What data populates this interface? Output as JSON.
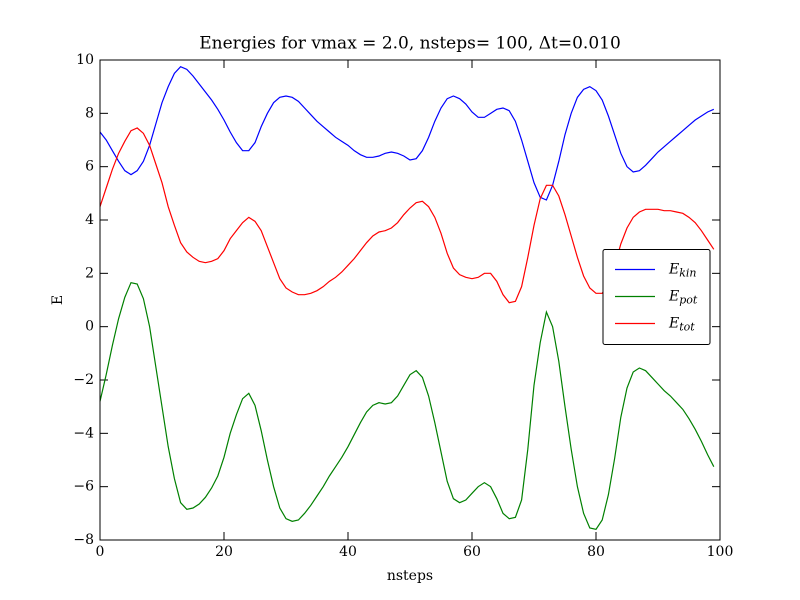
{
  "chart_data": {
    "type": "line",
    "title": "Energies for vmax = 2.0, nsteps= 100, Δt=0.010",
    "x_label": "nsteps",
    "y_label": "E",
    "x": [
      0,
      1,
      2,
      3,
      4,
      5,
      6,
      7,
      8,
      9,
      10,
      11,
      12,
      13,
      14,
      15,
      16,
      17,
      18,
      19,
      20,
      21,
      22,
      23,
      24,
      25,
      26,
      27,
      28,
      29,
      30,
      31,
      32,
      33,
      34,
      35,
      36,
      37,
      38,
      39,
      40,
      41,
      42,
      43,
      44,
      45,
      46,
      47,
      48,
      49,
      50,
      51,
      52,
      53,
      54,
      55,
      56,
      57,
      58,
      59,
      60,
      61,
      62,
      63,
      64,
      65,
      66,
      67,
      68,
      69,
      70,
      71,
      72,
      73,
      74,
      75,
      76,
      77,
      78,
      79,
      80,
      81,
      82,
      83,
      84,
      85,
      86,
      87,
      88,
      89,
      90,
      91,
      92,
      93,
      94,
      95,
      96,
      97,
      98,
      99
    ],
    "series": [
      {
        "name": "Ekin",
        "color": "#0000ff",
        "values": [
          7.3,
          7.0,
          6.6,
          6.2,
          5.85,
          5.7,
          5.85,
          6.2,
          6.8,
          7.6,
          8.4,
          9.0,
          9.5,
          9.75,
          9.65,
          9.4,
          9.1,
          8.8,
          8.5,
          8.15,
          7.75,
          7.3,
          6.9,
          6.6,
          6.6,
          6.9,
          7.5,
          8.0,
          8.4,
          8.6,
          8.65,
          8.6,
          8.45,
          8.2,
          7.95,
          7.7,
          7.5,
          7.3,
          7.1,
          6.95,
          6.8,
          6.6,
          6.45,
          6.35,
          6.35,
          6.4,
          6.5,
          6.55,
          6.5,
          6.4,
          6.25,
          6.3,
          6.6,
          7.1,
          7.7,
          8.2,
          8.55,
          8.65,
          8.55,
          8.35,
          8.05,
          7.85,
          7.85,
          8.0,
          8.15,
          8.2,
          8.1,
          7.7,
          7.0,
          6.2,
          5.4,
          4.85,
          4.75,
          5.3,
          6.2,
          7.2,
          8.0,
          8.6,
          8.9,
          9.0,
          8.85,
          8.5,
          7.9,
          7.2,
          6.5,
          6.0,
          5.8,
          5.85,
          6.05,
          6.3,
          6.55,
          6.75,
          6.95,
          7.15,
          7.35,
          7.55,
          7.75,
          7.9,
          8.05,
          8.15
        ]
      },
      {
        "name": "Epot",
        "color": "#008000",
        "values": [
          -2.8,
          -1.8,
          -0.7,
          0.3,
          1.1,
          1.65,
          1.6,
          1.05,
          0.0,
          -1.5,
          -3.0,
          -4.5,
          -5.7,
          -6.6,
          -6.85,
          -6.8,
          -6.65,
          -6.4,
          -6.05,
          -5.6,
          -4.9,
          -4.0,
          -3.3,
          -2.7,
          -2.5,
          -2.95,
          -3.9,
          -5.0,
          -6.0,
          -6.8,
          -7.2,
          -7.3,
          -7.25,
          -7.0,
          -6.7,
          -6.35,
          -6.0,
          -5.6,
          -5.25,
          -4.9,
          -4.5,
          -4.05,
          -3.6,
          -3.2,
          -2.95,
          -2.85,
          -2.9,
          -2.85,
          -2.6,
          -2.2,
          -1.8,
          -1.65,
          -1.9,
          -2.6,
          -3.6,
          -4.7,
          -5.8,
          -6.45,
          -6.6,
          -6.5,
          -6.25,
          -6.0,
          -5.85,
          -6.0,
          -6.45,
          -7.0,
          -7.2,
          -7.15,
          -6.5,
          -4.6,
          -2.2,
          -0.6,
          0.55,
          0.0,
          -1.3,
          -3.0,
          -4.6,
          -6.0,
          -7.0,
          -7.55,
          -7.6,
          -7.25,
          -6.3,
          -4.95,
          -3.4,
          -2.3,
          -1.7,
          -1.55,
          -1.65,
          -1.9,
          -2.15,
          -2.4,
          -2.6,
          -2.85,
          -3.1,
          -3.45,
          -3.85,
          -4.3,
          -4.8,
          -5.25
        ]
      },
      {
        "name": "Etot",
        "color": "#ff0000",
        "values": [
          4.5,
          5.2,
          5.9,
          6.5,
          6.95,
          7.35,
          7.45,
          7.25,
          6.8,
          6.1,
          5.4,
          4.5,
          3.8,
          3.15,
          2.8,
          2.6,
          2.45,
          2.4,
          2.45,
          2.55,
          2.85,
          3.3,
          3.6,
          3.9,
          4.1,
          3.95,
          3.6,
          3.0,
          2.4,
          1.8,
          1.45,
          1.3,
          1.2,
          1.2,
          1.25,
          1.35,
          1.5,
          1.7,
          1.85,
          2.05,
          2.3,
          2.55,
          2.85,
          3.15,
          3.4,
          3.55,
          3.6,
          3.7,
          3.9,
          4.2,
          4.45,
          4.65,
          4.7,
          4.5,
          4.1,
          3.5,
          2.75,
          2.2,
          1.95,
          1.85,
          1.8,
          1.85,
          2.0,
          2.0,
          1.7,
          1.2,
          0.9,
          0.95,
          1.5,
          2.6,
          3.8,
          4.8,
          5.3,
          5.3,
          4.9,
          4.2,
          3.4,
          2.6,
          1.9,
          1.45,
          1.25,
          1.25,
          1.6,
          2.25,
          3.1,
          3.7,
          4.1,
          4.3,
          4.4,
          4.4,
          4.4,
          4.35,
          4.35,
          4.3,
          4.25,
          4.1,
          3.9,
          3.6,
          3.25,
          2.9
        ]
      }
    ],
    "xlim": [
      0,
      100
    ],
    "xticks": [
      0,
      20,
      40,
      60,
      80,
      100
    ],
    "ylim": [
      -8,
      10
    ],
    "yticks": [
      {
        "value": -8,
        "label": "−8"
      },
      {
        "value": -6,
        "label": "−6"
      },
      {
        "value": -4,
        "label": "−4"
      },
      {
        "value": -2,
        "label": "−2"
      },
      0,
      2,
      4,
      6,
      8,
      10
    ],
    "legend": "center-right"
  }
}
